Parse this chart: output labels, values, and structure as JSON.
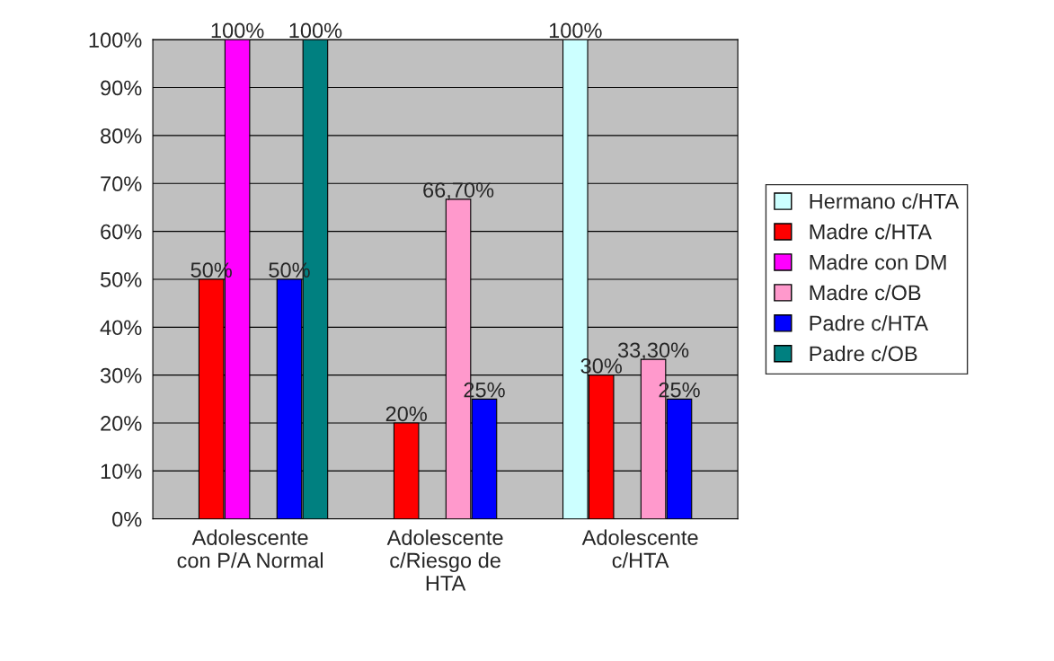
{
  "chart_data": {
    "type": "bar",
    "categories": [
      "Adolescente\ncon P/A Normal",
      "Adolescente\nc/Riesgo de\nHTA",
      "Adolescente\nc/HTA"
    ],
    "series": [
      {
        "name": "Hermano c/HTA",
        "color": "#ccffff",
        "values": [
          null,
          null,
          100
        ],
        "value_labels": [
          null,
          null,
          "100%"
        ]
      },
      {
        "name": "Madre c/HTA",
        "color": "#ff0000",
        "values": [
          50,
          20,
          30
        ],
        "value_labels": [
          "50%",
          "20%",
          "30%"
        ]
      },
      {
        "name": "Madre con DM",
        "color": "#ff00ff",
        "values": [
          100,
          null,
          null
        ],
        "value_labels": [
          "100%",
          null,
          null
        ]
      },
      {
        "name": "Madre c/OB",
        "color": "#ff99cc",
        "values": [
          null,
          66.7,
          33.3
        ],
        "value_labels": [
          null,
          "66,70%",
          "33,30%"
        ]
      },
      {
        "name": "Padre c/HTA",
        "color": "#0000ff",
        "values": [
          50,
          25,
          25
        ],
        "value_labels": [
          "50%",
          "25%",
          "25%"
        ]
      },
      {
        "name": "Padre c/OB",
        "color": "#008080",
        "values": [
          100,
          null,
          null
        ],
        "value_labels": [
          "100%",
          null,
          null
        ]
      }
    ],
    "ylim": [
      0,
      100
    ],
    "yticks": [
      {
        "value": 0,
        "label": "0%"
      },
      {
        "value": 10,
        "label": "10%"
      },
      {
        "value": 20,
        "label": "20%"
      },
      {
        "value": 30,
        "label": "30%"
      },
      {
        "value": 40,
        "label": "40%"
      },
      {
        "value": 50,
        "label": "50%"
      },
      {
        "value": 60,
        "label": "60%"
      },
      {
        "value": 70,
        "label": "70%"
      },
      {
        "value": 80,
        "label": "80%"
      },
      {
        "value": 90,
        "label": "90%"
      },
      {
        "value": 100,
        "label": "100%"
      }
    ],
    "grid": "y",
    "legend": "right"
  }
}
